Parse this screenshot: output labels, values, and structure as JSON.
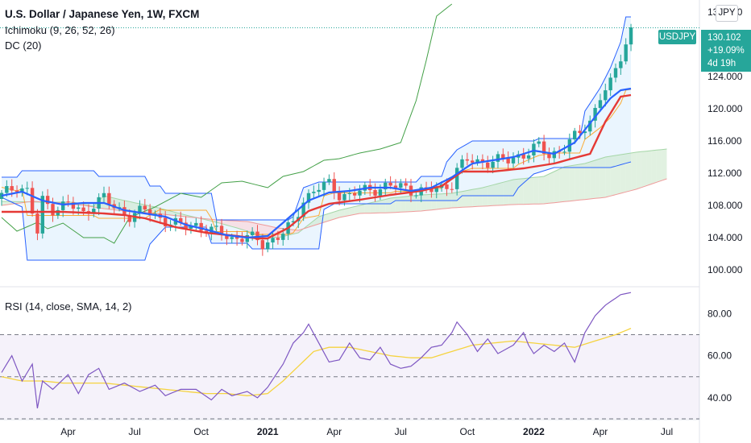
{
  "header": {
    "title": "U.S. Dollar / Japanese Yen, 1W, FXCM",
    "ichimoku_label": "Ichimoku (9, 26, 52, 26)",
    "dc_label": "DC (20)",
    "rsi_label": "RSI (14, close, SMA, 14, 2)",
    "currency": "JPY"
  },
  "price_tag": {
    "symbol": "USDJPY",
    "price": "130.102",
    "change": "+19.09%",
    "countdown": "4d 19h"
  },
  "colors": {
    "up": "#26a69a",
    "down": "#ef5350",
    "tenkan": "#2962ff",
    "kijun": "#e53935",
    "chikou": "#43a047",
    "senkou_a": "#a5d6a7",
    "senkou_b": "#ef9a9a",
    "donchian": "#2962ff",
    "donchian_fill": "#e3f2fd",
    "rsi_line": "#7e57c2",
    "rsi_ma": "#f5d33f"
  },
  "chart_data": [
    {
      "type": "candlestick",
      "panel": "price",
      "y_ticks": [
        100.0,
        104.0,
        108.0,
        112.0,
        116.0,
        120.0,
        124.0,
        132.0
      ],
      "y_tick_labels": [
        "100.000",
        "104.000",
        "108.000",
        "112.000",
        "116.000",
        "120.000",
        "124.000",
        "132.000"
      ],
      "ylim": [
        98.0,
        133.5
      ],
      "x_labels": [
        "Apr",
        "Jul",
        "Oct",
        "2021",
        "Apr",
        "Jul",
        "Oct",
        "2022",
        "Apr",
        "Jul"
      ],
      "x_label_week_index": [
        13,
        26,
        39,
        52,
        65,
        78,
        91,
        104,
        117,
        130
      ],
      "bold_labels": [
        "2021",
        "2022"
      ],
      "last_price": 130.102,
      "ohlc_anchors": [
        [
          0,
          109.2
        ],
        [
          3,
          110.5
        ],
        [
          5,
          109.8
        ],
        [
          7,
          104.5
        ],
        [
          8,
          108.5
        ],
        [
          10,
          107.6
        ],
        [
          13,
          108.2
        ],
        [
          16,
          106.9
        ],
        [
          18,
          108.3
        ],
        [
          20,
          109.0
        ],
        [
          22,
          107.6
        ],
        [
          25,
          106.8
        ],
        [
          28,
          107.4
        ],
        [
          30,
          106.7
        ],
        [
          33,
          105.9
        ],
        [
          35,
          105.4
        ],
        [
          38,
          105.6
        ],
        [
          41,
          104.8
        ],
        [
          43,
          104.6
        ],
        [
          45,
          103.9
        ],
        [
          48,
          104.1
        ],
        [
          50,
          103.6
        ],
        [
          51,
          103.2
        ],
        [
          54,
          104.1
        ],
        [
          57,
          105.6
        ],
        [
          59,
          108.8
        ],
        [
          62,
          110.2
        ],
        [
          64,
          110.6
        ],
        [
          66,
          109.4
        ],
        [
          68,
          109.2
        ],
        [
          70,
          109.7
        ],
        [
          73,
          110.1
        ],
        [
          76,
          110.4
        ],
        [
          79,
          110.2
        ],
        [
          81,
          109.8
        ],
        [
          83,
          109.7
        ],
        [
          86,
          110.2
        ],
        [
          88,
          110.8
        ],
        [
          89,
          112.4
        ],
        [
          91,
          113.6
        ],
        [
          93,
          113.4
        ],
        [
          96,
          113.5
        ],
        [
          99,
          113.6
        ],
        [
          101,
          114.2
        ],
        [
          103,
          114.6
        ],
        [
          105,
          115.3
        ],
        [
          107,
          114.2
        ],
        [
          110,
          115.2
        ],
        [
          112,
          116.4
        ],
        [
          115,
          118.5
        ],
        [
          117,
          121.5
        ],
        [
          119,
          123.0
        ],
        [
          121,
          126.6
        ],
        [
          122,
          128.3
        ],
        [
          123,
          130.102
        ]
      ],
      "chikou_anchors": [
        [
          0,
          106.5
        ],
        [
          3,
          104.8
        ],
        [
          7,
          105.9
        ],
        [
          9,
          105.1
        ],
        [
          12,
          105.8
        ],
        [
          16,
          104.0
        ],
        [
          20,
          104.0
        ],
        [
          22,
          103.3
        ],
        [
          25,
          106.5
        ],
        [
          30,
          107.8
        ],
        [
          35,
          109.5
        ],
        [
          39,
          109.0
        ],
        [
          43,
          110.8
        ],
        [
          47,
          111.0
        ],
        [
          52,
          110.2
        ],
        [
          55,
          111.6
        ],
        [
          59,
          112.2
        ],
        [
          63,
          113.6
        ],
        [
          66,
          113.8
        ],
        [
          70,
          114.5
        ],
        [
          74,
          115.0
        ],
        [
          78,
          115.8
        ],
        [
          81,
          121.0
        ],
        [
          83,
          126.0
        ],
        [
          85,
          131.5
        ],
        [
          88,
          133.0
        ]
      ],
      "tenkan_anchors": [
        [
          0,
          109.2
        ],
        [
          4,
          109.7
        ],
        [
          8,
          108.6
        ],
        [
          12,
          108.1
        ],
        [
          16,
          108.3
        ],
        [
          20,
          108.3
        ],
        [
          24,
          107.4
        ],
        [
          28,
          107.0
        ],
        [
          32,
          106.6
        ],
        [
          36,
          105.6
        ],
        [
          40,
          105.0
        ],
        [
          44,
          104.3
        ],
        [
          48,
          104.0
        ],
        [
          52,
          104.2
        ],
        [
          56,
          106.4
        ],
        [
          60,
          108.6
        ],
        [
          64,
          109.6
        ],
        [
          68,
          109.8
        ],
        [
          72,
          110.2
        ],
        [
          76,
          110.2
        ],
        [
          80,
          109.8
        ],
        [
          84,
          110.2
        ],
        [
          88,
          111.5
        ],
        [
          92,
          113.2
        ],
        [
          96,
          113.6
        ],
        [
          100,
          114.0
        ],
        [
          104,
          114.8
        ],
        [
          108,
          114.4
        ],
        [
          112,
          115.8
        ],
        [
          116,
          119.0
        ],
        [
          119,
          121.3
        ],
        [
          121,
          122.3
        ],
        [
          123,
          122.5
        ]
      ],
      "kijun_anchors": [
        [
          0,
          107.2
        ],
        [
          6,
          107.2
        ],
        [
          12,
          107.2
        ],
        [
          16,
          107.1
        ],
        [
          20,
          107.0
        ],
        [
          24,
          106.8
        ],
        [
          28,
          106.4
        ],
        [
          34,
          105.3
        ],
        [
          40,
          104.6
        ],
        [
          46,
          104.2
        ],
        [
          50,
          103.9
        ],
        [
          52,
          103.9
        ],
        [
          56,
          105.2
        ],
        [
          60,
          107.3
        ],
        [
          64,
          108.2
        ],
        [
          70,
          108.7
        ],
        [
          76,
          109.3
        ],
        [
          82,
          109.8
        ],
        [
          86,
          110.4
        ],
        [
          90,
          112.2
        ],
        [
          96,
          112.2
        ],
        [
          102,
          112.6
        ],
        [
          108,
          113.2
        ],
        [
          112,
          113.9
        ],
        [
          115,
          114.4
        ],
        [
          118,
          118.4
        ],
        [
          121,
          121.5
        ],
        [
          123,
          121.7
        ]
      ],
      "senkou_a_anchors": [
        [
          0,
          108.5
        ],
        [
          8,
          108.4
        ],
        [
          14,
          108.4
        ],
        [
          18,
          107.9
        ],
        [
          20,
          109.2
        ],
        [
          24,
          108.6
        ],
        [
          30,
          107.8
        ],
        [
          36,
          106.8
        ],
        [
          42,
          105.9
        ],
        [
          46,
          105.2
        ],
        [
          50,
          104.4
        ],
        [
          54,
          104.0
        ],
        [
          58,
          104.6
        ],
        [
          62,
          106.6
        ],
        [
          66,
          107.4
        ],
        [
          70,
          108.0
        ],
        [
          76,
          108.9
        ],
        [
          82,
          109.3
        ],
        [
          88,
          109.5
        ],
        [
          94,
          110.2
        ],
        [
          100,
          111.2
        ],
        [
          106,
          111.6
        ],
        [
          110,
          112.8
        ],
        [
          114,
          113.2
        ],
        [
          118,
          114.0
        ],
        [
          124,
          114.6
        ],
        [
          130,
          115.0
        ]
      ],
      "senkou_b_anchors": [
        [
          0,
          108.0
        ],
        [
          6,
          108.5
        ],
        [
          12,
          108.3
        ],
        [
          16,
          108.0
        ],
        [
          20,
          107.6
        ],
        [
          24,
          107.3
        ],
        [
          30,
          107.0
        ],
        [
          36,
          106.6
        ],
        [
          42,
          106.2
        ],
        [
          48,
          106.0
        ],
        [
          54,
          105.2
        ],
        [
          58,
          104.9
        ],
        [
          62,
          105.7
        ],
        [
          66,
          106.5
        ],
        [
          70,
          107.0
        ],
        [
          76,
          107.1
        ],
        [
          82,
          107.3
        ],
        [
          88,
          107.7
        ],
        [
          94,
          107.9
        ],
        [
          100,
          108.1
        ],
        [
          106,
          108.2
        ],
        [
          112,
          108.6
        ],
        [
          118,
          109.0
        ],
        [
          124,
          110.0
        ],
        [
          130,
          111.3
        ]
      ],
      "donchian_upper_anchors": [
        [
          0,
          111.5
        ],
        [
          3,
          111.5
        ],
        [
          4,
          112.3
        ],
        [
          18,
          112.3
        ],
        [
          19,
          111.6
        ],
        [
          28,
          111.6
        ],
        [
          29,
          110.4
        ],
        [
          31,
          110.4
        ],
        [
          32,
          109.5
        ],
        [
          41,
          109.5
        ],
        [
          42,
          106.2
        ],
        [
          56,
          106.2
        ],
        [
          57,
          106.6
        ],
        [
          59,
          110.2
        ],
        [
          62,
          110.9
        ],
        [
          81,
          110.9
        ],
        [
          82,
          111.6
        ],
        [
          86,
          111.6
        ],
        [
          87,
          113.4
        ],
        [
          89,
          114.9
        ],
        [
          92,
          116.0
        ],
        [
          104,
          116.0
        ],
        [
          105,
          116.3
        ],
        [
          113,
          116.3
        ],
        [
          114,
          119.7
        ],
        [
          117,
          122.6
        ],
        [
          119,
          125.1
        ],
        [
          121,
          128.3
        ],
        [
          122,
          131.4
        ],
        [
          123,
          131.4
        ]
      ],
      "donchian_lower_anchors": [
        [
          0,
          109.0
        ],
        [
          4,
          107.8
        ],
        [
          5,
          101.2
        ],
        [
          28,
          101.2
        ],
        [
          29,
          103.2
        ],
        [
          32,
          105.3
        ],
        [
          40,
          105.3
        ],
        [
          41,
          103.3
        ],
        [
          48,
          103.3
        ],
        [
          49,
          102.6
        ],
        [
          62,
          102.6
        ],
        [
          63,
          107.5
        ],
        [
          65,
          108.2
        ],
        [
          76,
          108.2
        ],
        [
          77,
          108.6
        ],
        [
          89,
          108.6
        ],
        [
          90,
          109.2
        ],
        [
          100,
          109.2
        ],
        [
          101,
          110.2
        ],
        [
          104,
          111.9
        ],
        [
          108,
          112.7
        ],
        [
          119,
          112.7
        ],
        [
          123,
          113.4
        ]
      ]
    },
    {
      "type": "line",
      "panel": "rsi",
      "y_ticks": [
        40.0,
        60.0,
        80.0
      ],
      "y_tick_labels": [
        "40.00",
        "60.00",
        "80.00"
      ],
      "ylim": [
        30,
        92
      ],
      "bands": [
        30,
        50,
        70
      ],
      "rsi_anchors": [
        [
          0,
          52
        ],
        [
          2,
          60
        ],
        [
          4,
          48
        ],
        [
          6,
          56
        ],
        [
          7,
          35
        ],
        [
          8,
          48
        ],
        [
          10,
          44
        ],
        [
          13,
          51
        ],
        [
          15,
          42
        ],
        [
          17,
          51
        ],
        [
          19,
          54
        ],
        [
          21,
          44
        ],
        [
          24,
          47
        ],
        [
          27,
          43
        ],
        [
          30,
          46
        ],
        [
          32,
          41
        ],
        [
          35,
          44
        ],
        [
          38,
          44
        ],
        [
          41,
          39
        ],
        [
          43,
          44
        ],
        [
          45,
          41
        ],
        [
          48,
          43
        ],
        [
          50,
          40
        ],
        [
          52,
          45
        ],
        [
          55,
          56
        ],
        [
          57,
          66
        ],
        [
          59,
          71
        ],
        [
          60,
          75
        ],
        [
          62,
          66
        ],
        [
          64,
          57
        ],
        [
          66,
          58
        ],
        [
          68,
          66
        ],
        [
          70,
          59
        ],
        [
          72,
          58
        ],
        [
          74,
          64
        ],
        [
          76,
          56
        ],
        [
          78,
          54
        ],
        [
          80,
          55
        ],
        [
          82,
          59
        ],
        [
          84,
          64
        ],
        [
          86,
          65
        ],
        [
          88,
          71
        ],
        [
          89,
          76
        ],
        [
          91,
          70
        ],
        [
          93,
          62
        ],
        [
          95,
          68
        ],
        [
          97,
          61
        ],
        [
          100,
          65
        ],
        [
          102,
          71
        ],
        [
          103,
          65
        ],
        [
          104,
          61
        ],
        [
          106,
          65
        ],
        [
          108,
          62
        ],
        [
          110,
          66
        ],
        [
          112,
          57
        ],
        [
          114,
          71
        ],
        [
          116,
          79
        ],
        [
          118,
          84
        ],
        [
          121,
          89
        ],
        [
          123,
          90
        ]
      ],
      "rsi_ma_anchors": [
        [
          0,
          50
        ],
        [
          4,
          48
        ],
        [
          8,
          48
        ],
        [
          12,
          47
        ],
        [
          16,
          47
        ],
        [
          20,
          47
        ],
        [
          24,
          46
        ],
        [
          28,
          45
        ],
        [
          32,
          44
        ],
        [
          36,
          43
        ],
        [
          40,
          42
        ],
        [
          44,
          42
        ],
        [
          48,
          41
        ],
        [
          52,
          42
        ],
        [
          55,
          48
        ],
        [
          58,
          55
        ],
        [
          61,
          62
        ],
        [
          64,
          64
        ],
        [
          68,
          64
        ],
        [
          72,
          62
        ],
        [
          76,
          60
        ],
        [
          80,
          59
        ],
        [
          84,
          59
        ],
        [
          88,
          62
        ],
        [
          92,
          65
        ],
        [
          96,
          66
        ],
        [
          100,
          67
        ],
        [
          104,
          66
        ],
        [
          108,
          65
        ],
        [
          112,
          64
        ],
        [
          116,
          67
        ],
        [
          120,
          70
        ],
        [
          123,
          73
        ]
      ]
    }
  ]
}
